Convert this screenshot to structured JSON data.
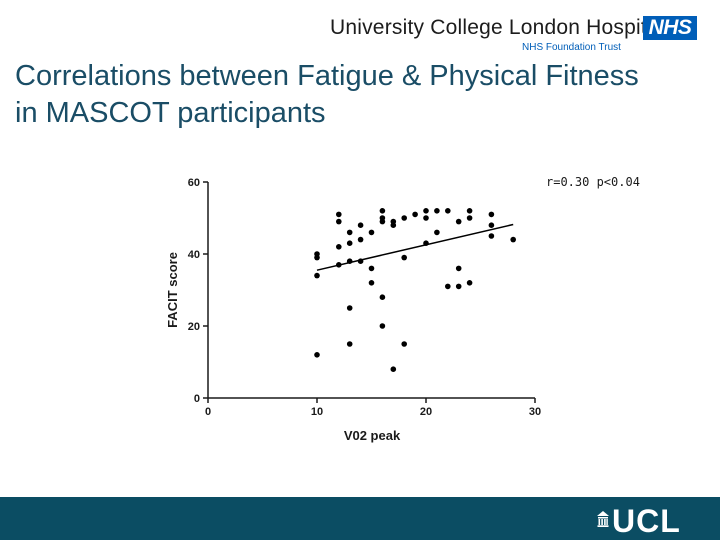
{
  "header": {
    "org_name": "University College London Hospitals",
    "nhs_logo_text": "NHS",
    "trust_name": "NHS Foundation Trust"
  },
  "slide": {
    "title": "Correlations between Fatigue & Physical Fitness in MASCOT participants"
  },
  "footer": {
    "logo_text": "UCL",
    "bar_color": "#0b4d63"
  },
  "chart_data": {
    "type": "scatter",
    "title": "",
    "xlabel": "V02 peak",
    "ylabel": "FACIT score",
    "xlim": [
      0,
      30
    ],
    "ylim": [
      0,
      60
    ],
    "x_ticks": [
      "0",
      "10",
      "20",
      "30"
    ],
    "y_ticks": [
      "0",
      "20",
      "40",
      "60"
    ],
    "grid": false,
    "annotation": "r=0.30 p<0.04",
    "points": [
      {
        "x": 10,
        "y": 40
      },
      {
        "x": 10,
        "y": 39
      },
      {
        "x": 10,
        "y": 34
      },
      {
        "x": 10,
        "y": 12
      },
      {
        "x": 12,
        "y": 51
      },
      {
        "x": 12,
        "y": 49
      },
      {
        "x": 12,
        "y": 42
      },
      {
        "x": 12,
        "y": 37
      },
      {
        "x": 13,
        "y": 46
      },
      {
        "x": 13,
        "y": 43
      },
      {
        "x": 13,
        "y": 38
      },
      {
        "x": 13,
        "y": 25
      },
      {
        "x": 13,
        "y": 15
      },
      {
        "x": 14,
        "y": 48
      },
      {
        "x": 14,
        "y": 44
      },
      {
        "x": 14,
        "y": 38
      },
      {
        "x": 15,
        "y": 46
      },
      {
        "x": 15,
        "y": 36
      },
      {
        "x": 15,
        "y": 32
      },
      {
        "x": 16,
        "y": 52
      },
      {
        "x": 16,
        "y": 50
      },
      {
        "x": 16,
        "y": 49
      },
      {
        "x": 16,
        "y": 28
      },
      {
        "x": 16,
        "y": 20
      },
      {
        "x": 17,
        "y": 49
      },
      {
        "x": 17,
        "y": 48
      },
      {
        "x": 17,
        "y": 8
      },
      {
        "x": 18,
        "y": 50
      },
      {
        "x": 18,
        "y": 39
      },
      {
        "x": 18,
        "y": 15
      },
      {
        "x": 19,
        "y": 51
      },
      {
        "x": 20,
        "y": 52
      },
      {
        "x": 20,
        "y": 50
      },
      {
        "x": 20,
        "y": 43
      },
      {
        "x": 21,
        "y": 52
      },
      {
        "x": 21,
        "y": 46
      },
      {
        "x": 22,
        "y": 52
      },
      {
        "x": 22,
        "y": 31
      },
      {
        "x": 23,
        "y": 49
      },
      {
        "x": 23,
        "y": 36
      },
      {
        "x": 23,
        "y": 31
      },
      {
        "x": 24,
        "y": 52
      },
      {
        "x": 24,
        "y": 50
      },
      {
        "x": 24,
        "y": 32
      },
      {
        "x": 26,
        "y": 51
      },
      {
        "x": 26,
        "y": 48
      },
      {
        "x": 26,
        "y": 45
      },
      {
        "x": 28,
        "y": 44
      }
    ],
    "trendline": {
      "x": [
        10,
        28
      ],
      "y": [
        35.5,
        48.2
      ]
    }
  }
}
